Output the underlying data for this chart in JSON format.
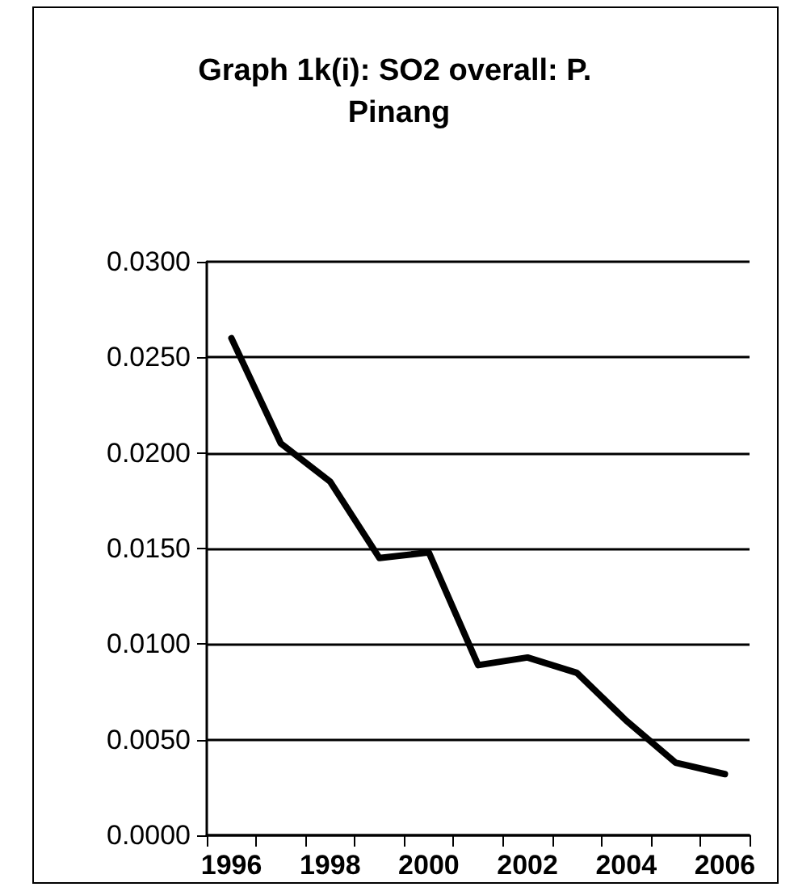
{
  "chart_data": {
    "type": "line",
    "title": "Graph 1k(i): SO2 overall: P. Pinang",
    "categories": [
      "1996",
      null,
      "1998",
      null,
      "2000",
      null,
      "2002",
      null,
      "2004",
      null,
      "2006"
    ],
    "series": [
      {
        "color": "#000000",
        "values": [
          0.026,
          0.0205,
          0.0185,
          0.0145,
          0.0148,
          0.0089,
          0.0093,
          0.0085,
          0.006,
          0.0038,
          0.0032
        ]
      }
    ],
    "ylim": [
      0,
      0.03
    ],
    "yticks": [
      {
        "value": 0,
        "label": "0.0000"
      },
      {
        "value": 0.005,
        "label": "0.0050"
      },
      {
        "value": 0.01,
        "label": "0.0100"
      },
      {
        "value": 0.015,
        "label": "0.0150"
      },
      {
        "value": 0.02,
        "label": "0.0200"
      },
      {
        "value": 0.025,
        "label": "0.0250"
      },
      {
        "value": 0.03,
        "label": "0.0300"
      }
    ],
    "grid": "y",
    "marker": "none",
    "line_style": "solid"
  }
}
